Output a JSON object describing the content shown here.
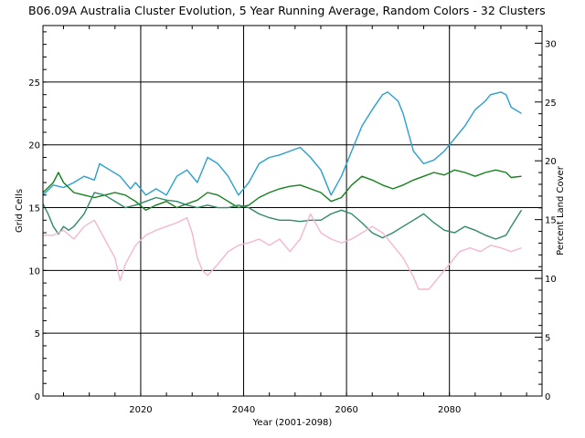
{
  "chart_data": {
    "type": "line",
    "title": "B06.09A Australia Cluster Evolution, 5 Year Running Average, Random Colors - 32 Clusters",
    "xlabel": "Year (2001-2098)",
    "ylabel": "Grid Cells",
    "y2label": "Percent Land Cover",
    "xlim": [
      2001,
      2098
    ],
    "ylim": [
      0,
      29.5
    ],
    "y2lim": [
      0,
      31.5
    ],
    "xticks": [
      2020,
      2040,
      2060,
      2080
    ],
    "yticks": [
      0,
      5,
      10,
      15,
      20,
      25
    ],
    "y2ticks": [
      0,
      5,
      10,
      15,
      20,
      25,
      30
    ],
    "grid": true,
    "series": [
      {
        "color": "#2a9fd0",
        "points": [
          [
            2001,
            16.0
          ],
          [
            2003,
            16.8
          ],
          [
            2005,
            16.6
          ],
          [
            2007,
            17.0
          ],
          [
            2009,
            17.5
          ],
          [
            2011,
            17.2
          ],
          [
            2012,
            18.5
          ],
          [
            2014,
            18.0
          ],
          [
            2016,
            17.5
          ],
          [
            2018,
            16.5
          ],
          [
            2019,
            17.0
          ],
          [
            2021,
            16.0
          ],
          [
            2023,
            16.5
          ],
          [
            2025,
            16.0
          ],
          [
            2027,
            17.5
          ],
          [
            2029,
            18.0
          ],
          [
            2031,
            17.0
          ],
          [
            2033,
            19.0
          ],
          [
            2035,
            18.5
          ],
          [
            2037,
            17.5
          ],
          [
            2039,
            16.0
          ],
          [
            2041,
            17.0
          ],
          [
            2043,
            18.5
          ],
          [
            2045,
            19.0
          ],
          [
            2047,
            19.2
          ],
          [
            2049,
            19.5
          ],
          [
            2051,
            19.8
          ],
          [
            2053,
            19.0
          ],
          [
            2055,
            18.0
          ],
          [
            2057,
            16.0
          ],
          [
            2059,
            17.5
          ],
          [
            2061,
            19.5
          ],
          [
            2063,
            21.5
          ],
          [
            2065,
            22.8
          ],
          [
            2067,
            24.0
          ],
          [
            2068,
            24.2
          ],
          [
            2070,
            23.5
          ],
          [
            2071,
            22.5
          ],
          [
            2072,
            21.0
          ],
          [
            2073,
            19.5
          ],
          [
            2075,
            18.5
          ],
          [
            2077,
            18.8
          ],
          [
            2079,
            19.5
          ],
          [
            2081,
            20.5
          ],
          [
            2083,
            21.5
          ],
          [
            2085,
            22.8
          ],
          [
            2087,
            23.5
          ],
          [
            2088,
            24.0
          ],
          [
            2090,
            24.2
          ],
          [
            2091,
            24.0
          ],
          [
            2092,
            23.0
          ],
          [
            2094,
            22.5
          ]
        ]
      },
      {
        "color": "#14801e",
        "points": [
          [
            2001,
            16.2
          ],
          [
            2003,
            17.0
          ],
          [
            2004,
            17.8
          ],
          [
            2005,
            17.0
          ],
          [
            2007,
            16.2
          ],
          [
            2009,
            16.0
          ],
          [
            2011,
            15.8
          ],
          [
            2013,
            16.0
          ],
          [
            2015,
            16.2
          ],
          [
            2017,
            16.0
          ],
          [
            2019,
            15.5
          ],
          [
            2021,
            14.8
          ],
          [
            2023,
            15.2
          ],
          [
            2025,
            15.5
          ],
          [
            2027,
            15.0
          ],
          [
            2029,
            15.3
          ],
          [
            2031,
            15.6
          ],
          [
            2033,
            16.2
          ],
          [
            2035,
            16.0
          ],
          [
            2037,
            15.5
          ],
          [
            2039,
            15.0
          ],
          [
            2041,
            15.2
          ],
          [
            2043,
            15.8
          ],
          [
            2045,
            16.2
          ],
          [
            2047,
            16.5
          ],
          [
            2049,
            16.7
          ],
          [
            2051,
            16.8
          ],
          [
            2053,
            16.5
          ],
          [
            2055,
            16.2
          ],
          [
            2057,
            15.5
          ],
          [
            2059,
            15.8
          ],
          [
            2061,
            16.8
          ],
          [
            2063,
            17.5
          ],
          [
            2065,
            17.2
          ],
          [
            2067,
            16.8
          ],
          [
            2069,
            16.5
          ],
          [
            2071,
            16.8
          ],
          [
            2073,
            17.2
          ],
          [
            2075,
            17.5
          ],
          [
            2077,
            17.8
          ],
          [
            2079,
            17.6
          ],
          [
            2081,
            18.0
          ],
          [
            2083,
            17.8
          ],
          [
            2085,
            17.5
          ],
          [
            2087,
            17.8
          ],
          [
            2089,
            18.0
          ],
          [
            2091,
            17.8
          ],
          [
            2092,
            17.4
          ],
          [
            2094,
            17.5
          ]
        ]
      },
      {
        "color": "#2e8a68",
        "points": [
          [
            2001,
            15.3
          ],
          [
            2002,
            14.5
          ],
          [
            2003,
            13.5
          ],
          [
            2004,
            12.9
          ],
          [
            2005,
            13.5
          ],
          [
            2006,
            13.2
          ],
          [
            2007,
            13.5
          ],
          [
            2009,
            14.5
          ],
          [
            2011,
            16.2
          ],
          [
            2013,
            16.0
          ],
          [
            2015,
            15.5
          ],
          [
            2017,
            15.0
          ],
          [
            2019,
            15.2
          ],
          [
            2021,
            15.5
          ],
          [
            2023,
            15.8
          ],
          [
            2025,
            15.6
          ],
          [
            2027,
            15.5
          ],
          [
            2029,
            15.2
          ],
          [
            2031,
            15.0
          ],
          [
            2033,
            15.2
          ],
          [
            2035,
            15.0
          ],
          [
            2037,
            15.0
          ],
          [
            2039,
            15.2
          ],
          [
            2041,
            15.0
          ],
          [
            2043,
            14.5
          ],
          [
            2045,
            14.2
          ],
          [
            2047,
            14.0
          ],
          [
            2049,
            14.0
          ],
          [
            2051,
            13.9
          ],
          [
            2053,
            14.0
          ],
          [
            2055,
            14.0
          ],
          [
            2057,
            14.5
          ],
          [
            2059,
            14.8
          ],
          [
            2061,
            14.5
          ],
          [
            2063,
            13.8
          ],
          [
            2065,
            13.0
          ],
          [
            2067,
            12.6
          ],
          [
            2069,
            13.0
          ],
          [
            2071,
            13.5
          ],
          [
            2073,
            14.0
          ],
          [
            2075,
            14.5
          ],
          [
            2077,
            13.8
          ],
          [
            2079,
            13.2
          ],
          [
            2081,
            13.0
          ],
          [
            2083,
            13.5
          ],
          [
            2085,
            13.2
          ],
          [
            2087,
            12.8
          ],
          [
            2089,
            12.5
          ],
          [
            2091,
            12.8
          ],
          [
            2092,
            13.5
          ],
          [
            2094,
            14.8
          ]
        ]
      },
      {
        "color": "#f4b6d2",
        "points": [
          [
            2001,
            12.8
          ],
          [
            2003,
            12.8
          ],
          [
            2005,
            13.2
          ],
          [
            2007,
            12.5
          ],
          [
            2009,
            13.5
          ],
          [
            2011,
            14.0
          ],
          [
            2013,
            12.5
          ],
          [
            2015,
            11.0
          ],
          [
            2016,
            9.2
          ],
          [
            2017,
            10.5
          ],
          [
            2019,
            12.0
          ],
          [
            2021,
            12.8
          ],
          [
            2023,
            13.2
          ],
          [
            2025,
            13.5
          ],
          [
            2027,
            13.8
          ],
          [
            2029,
            14.2
          ],
          [
            2030,
            13.0
          ],
          [
            2031,
            11.0
          ],
          [
            2032,
            10.0
          ],
          [
            2033,
            9.6
          ],
          [
            2035,
            10.5
          ],
          [
            2037,
            11.5
          ],
          [
            2039,
            12.0
          ],
          [
            2041,
            12.2
          ],
          [
            2043,
            12.5
          ],
          [
            2045,
            12.0
          ],
          [
            2047,
            12.5
          ],
          [
            2049,
            11.5
          ],
          [
            2051,
            12.5
          ],
          [
            2053,
            14.5
          ],
          [
            2055,
            13.0
          ],
          [
            2057,
            12.5
          ],
          [
            2059,
            12.2
          ],
          [
            2061,
            12.5
          ],
          [
            2063,
            13.0
          ],
          [
            2065,
            13.5
          ],
          [
            2067,
            13.0
          ],
          [
            2069,
            12.0
          ],
          [
            2071,
            11.0
          ],
          [
            2073,
            9.5
          ],
          [
            2074,
            8.5
          ],
          [
            2076,
            8.5
          ],
          [
            2078,
            9.5
          ],
          [
            2080,
            10.5
          ],
          [
            2082,
            11.5
          ],
          [
            2084,
            11.8
          ],
          [
            2086,
            11.5
          ],
          [
            2088,
            12.0
          ],
          [
            2090,
            11.8
          ],
          [
            2092,
            11.5
          ],
          [
            2094,
            11.8
          ]
        ]
      }
    ]
  }
}
